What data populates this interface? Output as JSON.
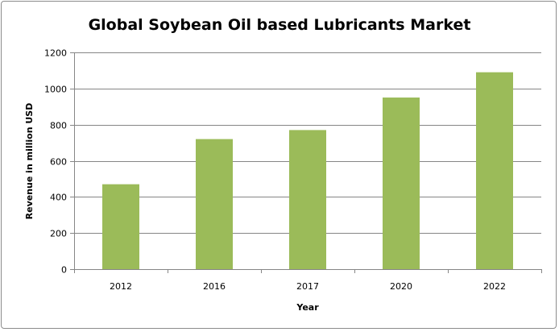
{
  "chart_data": {
    "type": "bar",
    "title": "Global Soybean Oil based Lubricants Market",
    "xlabel": "Year",
    "ylabel": "Revenue in million USD",
    "categories": [
      "2012",
      "2016",
      "2017",
      "2020",
      "2022"
    ],
    "values": [
      470,
      720,
      770,
      950,
      1090
    ],
    "ylim": [
      0,
      1200
    ],
    "yticks": [
      0,
      200,
      400,
      600,
      800,
      1000,
      1200
    ],
    "grid": true,
    "bar_color": "#9bbb59",
    "grid_color": "#868686"
  }
}
